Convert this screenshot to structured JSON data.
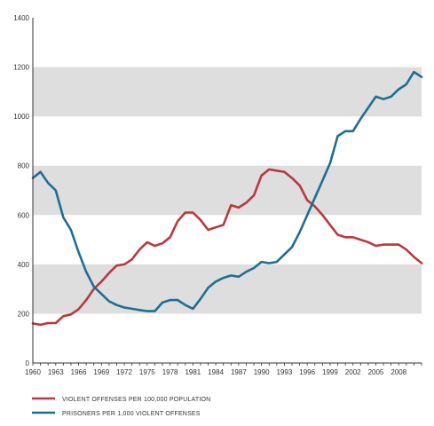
{
  "chart_data": {
    "type": "line",
    "x": [
      1960,
      1961,
      1962,
      1963,
      1964,
      1965,
      1966,
      1967,
      1968,
      1969,
      1970,
      1971,
      1972,
      1973,
      1974,
      1975,
      1976,
      1977,
      1978,
      1979,
      1980,
      1981,
      1982,
      1983,
      1984,
      1985,
      1986,
      1987,
      1988,
      1989,
      1990,
      1991,
      1992,
      1993,
      1994,
      1995,
      1996,
      1997,
      1998,
      1999,
      2000,
      2001,
      2002,
      2003,
      2004,
      2005,
      2006,
      2007,
      2008,
      2009,
      2010,
      2011
    ],
    "x_ticks": [
      "1960",
      "1963",
      "1966",
      "1969",
      "1972",
      "1975",
      "1978",
      "1981",
      "1984",
      "1987",
      "1990",
      "1993",
      "1996",
      "1999",
      "2002",
      "2005",
      "2008"
    ],
    "y_ticks": [
      "0",
      "200",
      "400",
      "600",
      "800",
      "1000",
      "1200",
      "1400"
    ],
    "ylim": [
      0,
      1400
    ],
    "xlim": [
      1960,
      2011
    ],
    "grid": "alternating horizontal bands",
    "legend_position": "bottom-left",
    "series": [
      {
        "name": "VIOLENT OFFENSES PER 100,000 POPULATION",
        "color": "#b8393e",
        "values": [
          160,
          155,
          162,
          162,
          190,
          197,
          218,
          255,
          300,
          330,
          365,
          395,
          400,
          420,
          460,
          490,
          475,
          485,
          510,
          575,
          610,
          610,
          580,
          540,
          550,
          560,
          640,
          630,
          650,
          680,
          760,
          785,
          780,
          775,
          750,
          720,
          660,
          635,
          600,
          560,
          520,
          510,
          510,
          500,
          490,
          475,
          480,
          480,
          480,
          460,
          430,
          405
        ]
      },
      {
        "name": "PRISONERS PER 1,000 VIOLENT OFFENSES",
        "color": "#1f6e92",
        "values": [
          750,
          775,
          730,
          700,
          590,
          540,
          450,
          370,
          310,
          280,
          250,
          235,
          225,
          220,
          215,
          210,
          210,
          245,
          255,
          255,
          235,
          220,
          260,
          305,
          330,
          345,
          355,
          350,
          370,
          385,
          410,
          405,
          410,
          440,
          470,
          530,
          600,
          670,
          740,
          810,
          920,
          940,
          940,
          990,
          1035,
          1080,
          1070,
          1080,
          1110,
          1130,
          1180,
          1160
        ]
      }
    ]
  }
}
